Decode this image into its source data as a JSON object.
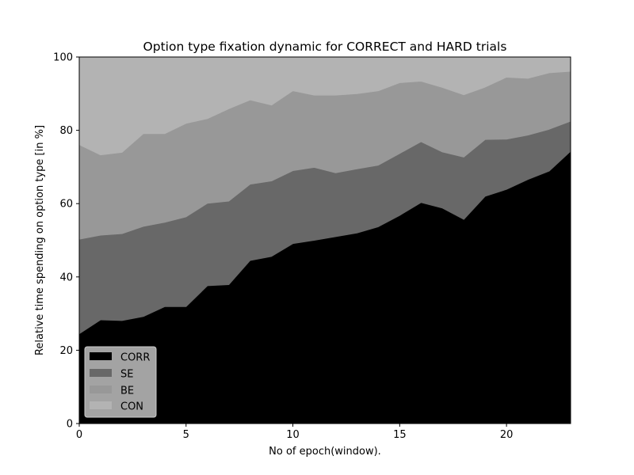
{
  "chart_data": {
    "type": "area",
    "stacked": true,
    "title": "Option type fixation dynamic for CORRECT and HARD trials",
    "xlabel": "No of epoch(window).",
    "ylabel": "Relative time spending on option type [in %]",
    "xlim": [
      0,
      23
    ],
    "ylim": [
      0,
      100
    ],
    "xticks": [
      "0",
      "5",
      "10",
      "15",
      "20"
    ],
    "yticks": [
      "0",
      "20",
      "40",
      "60",
      "80",
      "100"
    ],
    "grid": false,
    "legend_position": "lower-left",
    "x": [
      0,
      1,
      2,
      3,
      4,
      5,
      6,
      7,
      8,
      9,
      10,
      11,
      12,
      13,
      14,
      15,
      16,
      17,
      18,
      19,
      20,
      21,
      22,
      23
    ],
    "series": [
      {
        "name": "CORR",
        "color": "#000000",
        "cumulative": [
          24.5,
          28.3,
          28.1,
          29.2,
          31.9,
          31.9,
          37.6,
          37.9,
          44.5,
          45.6,
          49.1,
          50.0,
          51.0,
          52.0,
          53.7,
          56.8,
          60.3,
          58.8,
          55.7,
          62.0,
          63.9,
          66.6,
          68.9,
          74.3
        ]
      },
      {
        "name": "SE",
        "color": "#686868",
        "cumulative": [
          50.3,
          51.4,
          51.8,
          53.8,
          54.9,
          56.4,
          60.1,
          60.7,
          65.3,
          66.2,
          69.0,
          69.9,
          68.4,
          69.5,
          70.5,
          73.7,
          76.9,
          74.1,
          72.7,
          77.5,
          77.6,
          78.7,
          80.3,
          82.5
        ]
      },
      {
        "name": "BE",
        "color": "#989898",
        "cumulative": [
          76.1,
          73.3,
          74.0,
          79.1,
          79.1,
          81.9,
          83.2,
          85.9,
          88.3,
          86.9,
          90.8,
          89.6,
          89.6,
          90.0,
          90.8,
          93.0,
          93.4,
          91.7,
          89.7,
          91.8,
          94.5,
          94.2,
          95.7,
          96.1
        ]
      },
      {
        "name": "CON",
        "color": "#b3b3b3",
        "cumulative": [
          100,
          100,
          100,
          100,
          100,
          100,
          100,
          100,
          100,
          100,
          100,
          100,
          100,
          100,
          100,
          100,
          100,
          100,
          100,
          100,
          100,
          100,
          100,
          100
        ]
      }
    ]
  }
}
